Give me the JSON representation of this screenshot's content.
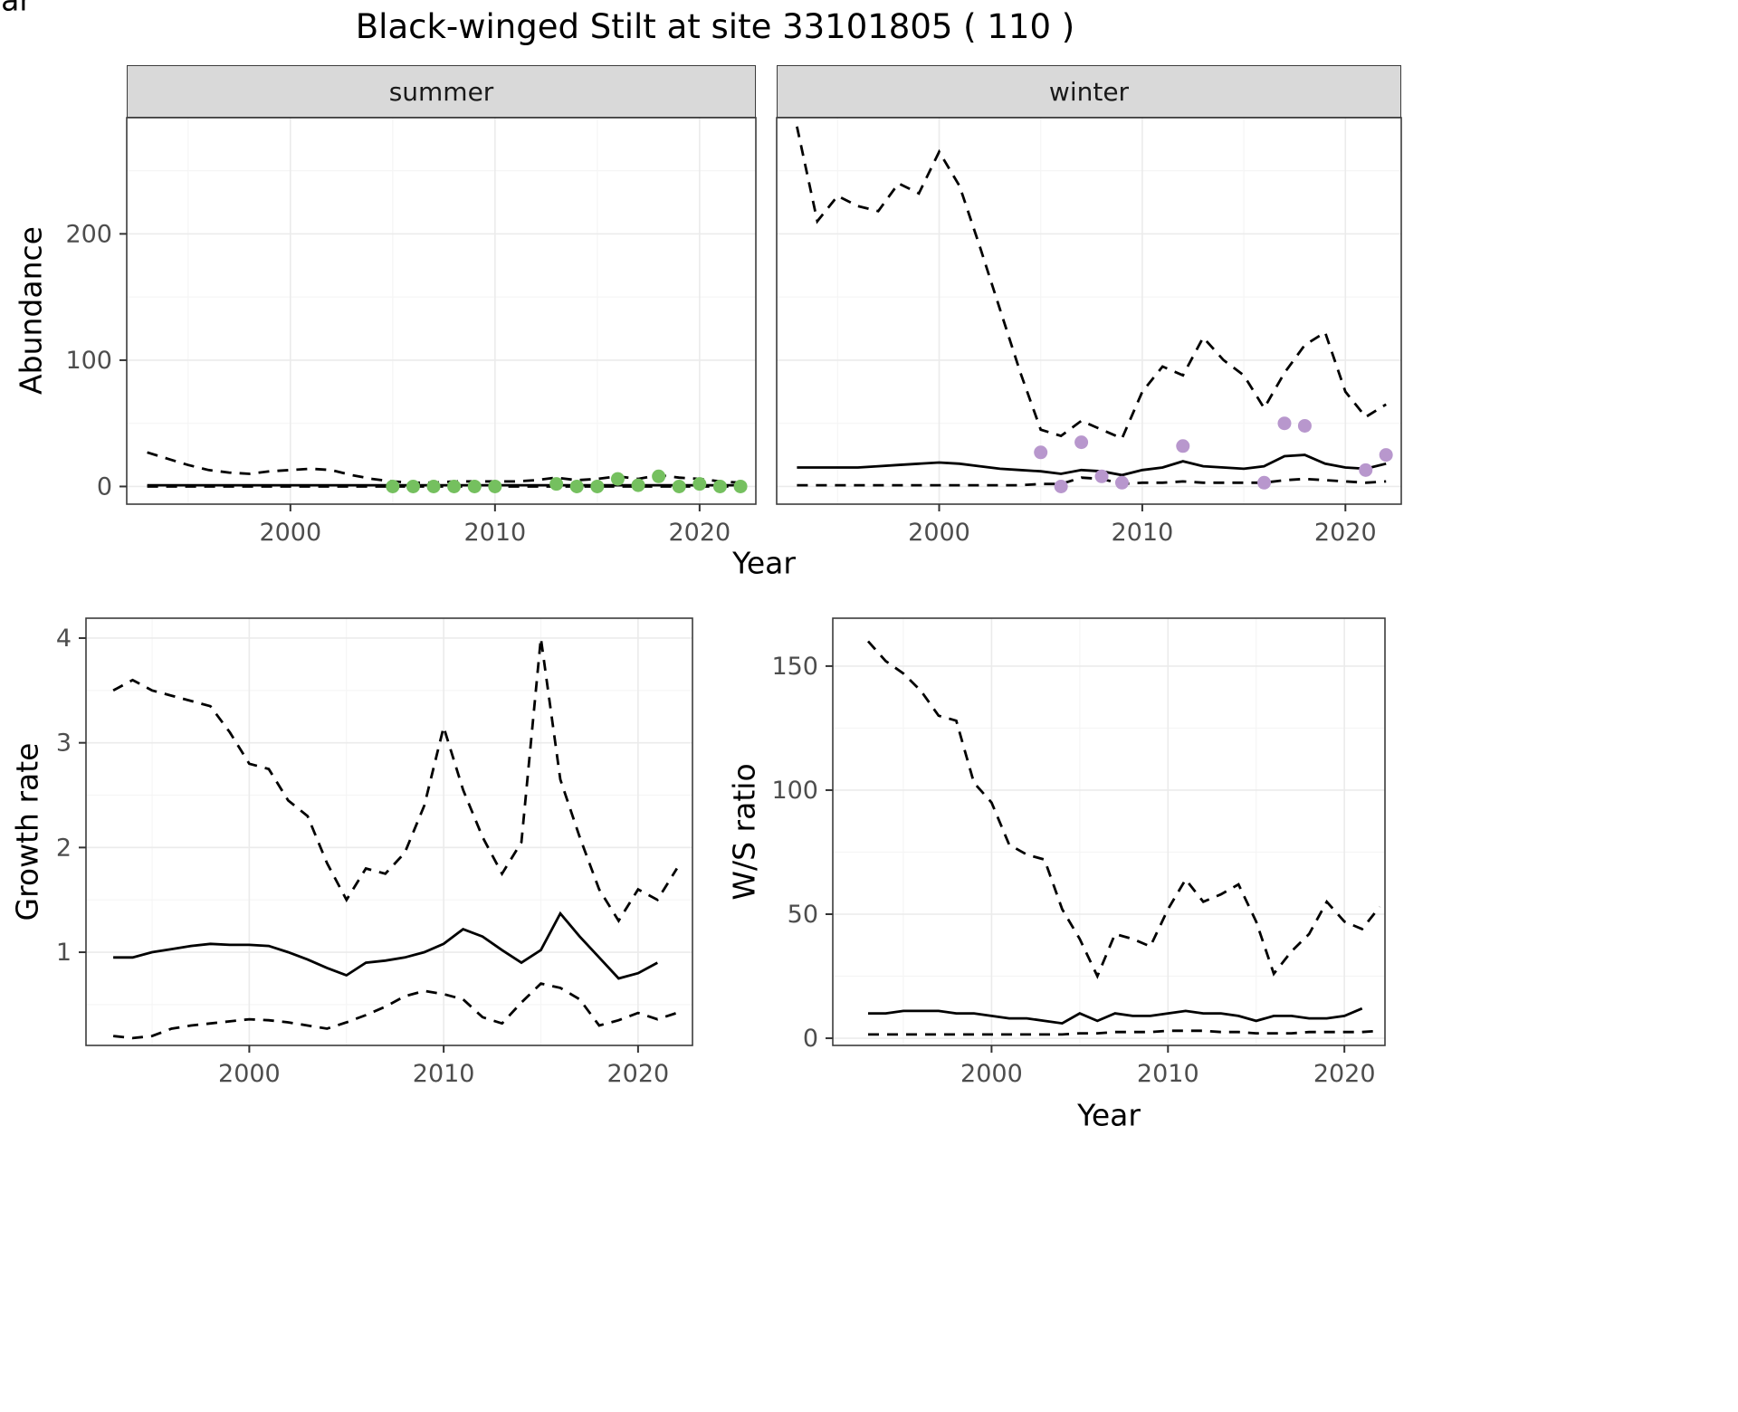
{
  "title": "Black-winged Stilt at site 33101805 ( 110 )",
  "facets": {
    "summer": "summer",
    "winter": "winter"
  },
  "axis_labels": {
    "abundance": "Abundance",
    "year": "Year",
    "growth": "Growth rate",
    "ws": "W/S ratio"
  },
  "colors": {
    "line": "#000000",
    "summer_points": "#75c05f",
    "winter_points": "#b897cd",
    "grid_major": "#ebebeb",
    "grid_minor": "#f5f5f5",
    "panel_border": "#3c3c3c",
    "tick_mark": "#333333",
    "tick_text": "#4d4d4d",
    "strip_bg": "#d9d9d9"
  },
  "chart_data": [
    {
      "id": "abundance-summer",
      "type": "line",
      "facet": "summer",
      "xlabel": "Year",
      "ylabel": "Abundance",
      "xlim": [
        1992,
        2022.75
      ],
      "ylim": [
        -14,
        292
      ],
      "x_ticks": [
        2000,
        2010,
        2020
      ],
      "x_minor": [
        1995,
        2005,
        2015
      ],
      "y_ticks": [
        0,
        100,
        200
      ],
      "y_minor": [
        50,
        150,
        250
      ],
      "series": [
        {
          "name": "upper-ci",
          "kind": "line",
          "dash": true,
          "x": [
            1993,
            1994,
            1995,
            1996,
            1997,
            1998,
            1999,
            2000,
            2001,
            2002,
            2003,
            2004,
            2005,
            2006,
            2007,
            2008,
            2009,
            2010,
            2011,
            2012,
            2013,
            2014,
            2015,
            2016,
            2017,
            2018,
            2019,
            2020,
            2021,
            2022
          ],
          "y": [
            27,
            22,
            17,
            13,
            11,
            10,
            12,
            13,
            14,
            13,
            9,
            6,
            4,
            3,
            3,
            4,
            4,
            4,
            4,
            5,
            7,
            5,
            6,
            8,
            6,
            9,
            7,
            6,
            4,
            3
          ]
        },
        {
          "name": "median",
          "kind": "line",
          "dash": false,
          "x": [
            1993,
            1994,
            1995,
            1996,
            1997,
            1998,
            1999,
            2000,
            2001,
            2002,
            2003,
            2004,
            2005,
            2006,
            2007,
            2008,
            2009,
            2010,
            2011,
            2012,
            2013,
            2014,
            2015,
            2016,
            2017,
            2018,
            2019,
            2020,
            2021,
            2022
          ],
          "y": [
            1,
            1,
            1,
            1,
            1,
            1,
            1,
            1,
            1,
            1,
            1,
            1,
            1,
            1,
            1,
            1,
            1,
            1,
            1,
            1,
            1,
            1,
            1,
            1,
            1,
            1,
            1,
            1,
            1,
            1
          ]
        },
        {
          "name": "lower-ci",
          "kind": "line",
          "dash": true,
          "x": [
            1993,
            1994,
            1995,
            1996,
            1997,
            1998,
            1999,
            2000,
            2001,
            2002,
            2003,
            2004,
            2005,
            2006,
            2007,
            2008,
            2009,
            2010,
            2011,
            2012,
            2013,
            2014,
            2015,
            2016,
            2017,
            2018,
            2019,
            2020,
            2021,
            2022
          ],
          "y": [
            0,
            0,
            0,
            0,
            0,
            0,
            0,
            0,
            0,
            0,
            0,
            0,
            0,
            0,
            0,
            0,
            0,
            0,
            0,
            0,
            0,
            0,
            0,
            0,
            0,
            0,
            0,
            0,
            0,
            0
          ]
        },
        {
          "name": "observed-counts",
          "kind": "points",
          "color_key": "summer_points",
          "x": [
            2005,
            2006,
            2007,
            2008,
            2009,
            2010,
            2013,
            2014,
            2015,
            2016,
            2017,
            2018,
            2019,
            2020,
            2021,
            2022
          ],
          "y": [
            0,
            0,
            0,
            0,
            0,
            0,
            2,
            0,
            0,
            6,
            1,
            8,
            0,
            2,
            0,
            0
          ]
        }
      ]
    },
    {
      "id": "abundance-winter",
      "type": "line",
      "facet": "winter",
      "xlabel": "Year",
      "ylabel": "Abundance",
      "xlim": [
        1992,
        2022.75
      ],
      "ylim": [
        -14,
        292
      ],
      "x_ticks": [
        2000,
        2010,
        2020
      ],
      "x_minor": [
        1995,
        2005,
        2015
      ],
      "y_ticks": [
        0,
        100,
        200
      ],
      "y_minor": [
        50,
        150,
        250
      ],
      "series": [
        {
          "name": "upper-ci",
          "kind": "line",
          "dash": true,
          "x": [
            1993,
            1994,
            1995,
            1996,
            1997,
            1998,
            1999,
            2000,
            2001,
            2002,
            2003,
            2004,
            2005,
            2006,
            2007,
            2008,
            2009,
            2010,
            2011,
            2012,
            2013,
            2014,
            2015,
            2016,
            2017,
            2018,
            2019,
            2020,
            2021,
            2022
          ],
          "y": [
            285,
            210,
            230,
            222,
            218,
            240,
            232,
            265,
            238,
            190,
            140,
            90,
            45,
            40,
            52,
            45,
            38,
            75,
            95,
            88,
            118,
            100,
            88,
            62,
            90,
            112,
            122,
            75,
            55,
            65
          ]
        },
        {
          "name": "median",
          "kind": "line",
          "dash": false,
          "x": [
            1993,
            1994,
            1995,
            1996,
            1997,
            1998,
            1999,
            2000,
            2001,
            2002,
            2003,
            2004,
            2005,
            2006,
            2007,
            2008,
            2009,
            2010,
            2011,
            2012,
            2013,
            2014,
            2015,
            2016,
            2017,
            2018,
            2019,
            2020,
            2021,
            2022
          ],
          "y": [
            15,
            15,
            15,
            15,
            16,
            17,
            18,
            19,
            18,
            16,
            14,
            13,
            12,
            10,
            13,
            12,
            9,
            13,
            15,
            20,
            16,
            15,
            14,
            16,
            24,
            25,
            18,
            15,
            14,
            18
          ]
        },
        {
          "name": "lower-ci",
          "kind": "line",
          "dash": true,
          "x": [
            1993,
            1994,
            1995,
            1996,
            1997,
            1998,
            1999,
            2000,
            2001,
            2002,
            2003,
            2004,
            2005,
            2006,
            2007,
            2008,
            2009,
            2010,
            2011,
            2012,
            2013,
            2014,
            2015,
            2016,
            2017,
            2018,
            2019,
            2020,
            2021,
            2022
          ],
          "y": [
            1,
            1,
            1,
            1,
            1,
            1,
            1,
            1,
            1,
            1,
            1,
            1,
            2,
            2,
            7,
            6,
            2,
            3,
            3,
            4,
            3,
            3,
            3,
            3,
            5,
            6,
            5,
            4,
            3,
            4
          ]
        },
        {
          "name": "observed-counts",
          "kind": "points",
          "color_key": "winter_points",
          "x": [
            2005,
            2006,
            2007,
            2008,
            2009,
            2012,
            2016,
            2017,
            2018,
            2021,
            2022
          ],
          "y": [
            27,
            0,
            35,
            8,
            3,
            32,
            3,
            50,
            48,
            13,
            25
          ]
        }
      ]
    },
    {
      "id": "growth-rate",
      "type": "line",
      "facet": null,
      "xlabel": "Year",
      "ylabel": "Growth rate",
      "xlim": [
        1991.6,
        2022.8
      ],
      "ylim": [
        0.11,
        4.19
      ],
      "x_ticks": [
        2000,
        2010,
        2020
      ],
      "x_minor": [
        1995,
        2005,
        2015
      ],
      "y_ticks": [
        1,
        2,
        3,
        4
      ],
      "y_minor": [
        0.5,
        1.5,
        2.5,
        3.5
      ],
      "series": [
        {
          "name": "upper-ci",
          "kind": "line",
          "dash": true,
          "x": [
            1993,
            1994,
            1995,
            1996,
            1997,
            1998,
            1999,
            2000,
            2001,
            2002,
            2003,
            2004,
            2005,
            2006,
            2007,
            2008,
            2009,
            2010,
            2011,
            2012,
            2013,
            2014,
            2015,
            2016,
            2017,
            2018,
            2019,
            2020,
            2021,
            2022
          ],
          "y": [
            3.5,
            3.6,
            3.5,
            3.45,
            3.4,
            3.35,
            3.1,
            2.8,
            2.75,
            2.45,
            2.3,
            1.85,
            1.5,
            1.8,
            1.75,
            1.95,
            2.4,
            3.15,
            2.55,
            2.1,
            1.75,
            2.05,
            4.0,
            2.65,
            2.1,
            1.6,
            1.3,
            1.6,
            1.5,
            1.8
          ]
        },
        {
          "name": "median",
          "kind": "line",
          "dash": false,
          "x": [
            1993,
            1994,
            1995,
            1996,
            1997,
            1998,
            1999,
            2000,
            2001,
            2002,
            2003,
            2004,
            2005,
            2006,
            2007,
            2008,
            2009,
            2010,
            2011,
            2012,
            2013,
            2014,
            2015,
            2016,
            2017,
            2018,
            2019,
            2020,
            2021
          ],
          "y": [
            0.95,
            0.95,
            1.0,
            1.03,
            1.06,
            1.08,
            1.07,
            1.07,
            1.06,
            1.0,
            0.93,
            0.85,
            0.78,
            0.9,
            0.92,
            0.95,
            1.0,
            1.08,
            1.22,
            1.15,
            1.02,
            0.9,
            1.02,
            1.37,
            1.15,
            0.95,
            0.75,
            0.8,
            0.9
          ]
        },
        {
          "name": "lower-ci",
          "kind": "line",
          "dash": true,
          "x": [
            1993,
            1994,
            1995,
            1996,
            1997,
            1998,
            1999,
            2000,
            2001,
            2002,
            2003,
            2004,
            2005,
            2006,
            2007,
            2008,
            2009,
            2010,
            2011,
            2012,
            2013,
            2014,
            2015,
            2016,
            2017,
            2018,
            2019,
            2020,
            2021,
            2022
          ],
          "y": [
            0.2,
            0.18,
            0.2,
            0.27,
            0.3,
            0.32,
            0.34,
            0.36,
            0.35,
            0.33,
            0.3,
            0.27,
            0.33,
            0.4,
            0.48,
            0.58,
            0.63,
            0.6,
            0.55,
            0.38,
            0.32,
            0.52,
            0.7,
            0.66,
            0.55,
            0.3,
            0.35,
            0.42,
            0.36,
            0.42
          ]
        }
      ]
    },
    {
      "id": "ws-ratio",
      "type": "line",
      "facet": null,
      "xlabel": "Year",
      "ylabel": "W/S ratio",
      "xlim": [
        1991.0,
        2022.3
      ],
      "ylim": [
        -2.9,
        169.3
      ],
      "x_ticks": [
        2000,
        2010,
        2020
      ],
      "x_minor": [
        1995,
        2005,
        2015
      ],
      "y_ticks": [
        0,
        50,
        100,
        150
      ],
      "y_minor": [
        25,
        75,
        125
      ],
      "series": [
        {
          "name": "upper-ci",
          "kind": "line",
          "dash": true,
          "x": [
            1993,
            1994,
            1995,
            1996,
            1997,
            1998,
            1999,
            2000,
            2001,
            2002,
            2003,
            2004,
            2005,
            2006,
            2007,
            2008,
            2009,
            2010,
            2011,
            2012,
            2013,
            2014,
            2015,
            2016,
            2017,
            2018,
            2019,
            2020,
            2021,
            2022
          ],
          "y": [
            160,
            152,
            147,
            140,
            130,
            128,
            103,
            95,
            78,
            74,
            72,
            52,
            40,
            25,
            42,
            40,
            37,
            52,
            64,
            55,
            58,
            62,
            47,
            26,
            35,
            42,
            55,
            47,
            44,
            53
          ]
        },
        {
          "name": "median",
          "kind": "line",
          "dash": false,
          "x": [
            1993,
            1994,
            1995,
            1996,
            1997,
            1998,
            1999,
            2000,
            2001,
            2002,
            2003,
            2004,
            2005,
            2006,
            2007,
            2008,
            2009,
            2010,
            2011,
            2012,
            2013,
            2014,
            2015,
            2016,
            2017,
            2018,
            2019,
            2020,
            2021
          ],
          "y": [
            10,
            10,
            11,
            11,
            11,
            10,
            10,
            9,
            8,
            8,
            7,
            6,
            10,
            7,
            10,
            9,
            9,
            10,
            11,
            10,
            10,
            9,
            7,
            9,
            9,
            8,
            8,
            9,
            12
          ]
        },
        {
          "name": "lower-ci",
          "kind": "line",
          "dash": true,
          "x": [
            1993,
            1994,
            1995,
            1996,
            1997,
            1998,
            1999,
            2000,
            2001,
            2002,
            2003,
            2004,
            2005,
            2006,
            2007,
            2008,
            2009,
            2010,
            2011,
            2012,
            2013,
            2014,
            2015,
            2016,
            2017,
            2018,
            2019,
            2020,
            2021,
            2022
          ],
          "y": [
            1.5,
            1.5,
            1.5,
            1.5,
            1.5,
            1.5,
            1.5,
            1.5,
            1.5,
            1.5,
            1.5,
            1.5,
            2,
            2,
            2.5,
            2.5,
            2.5,
            3,
            3,
            3,
            2.5,
            2.5,
            2,
            2,
            2,
            2.5,
            2.5,
            2.5,
            2.5,
            3
          ]
        }
      ]
    }
  ]
}
